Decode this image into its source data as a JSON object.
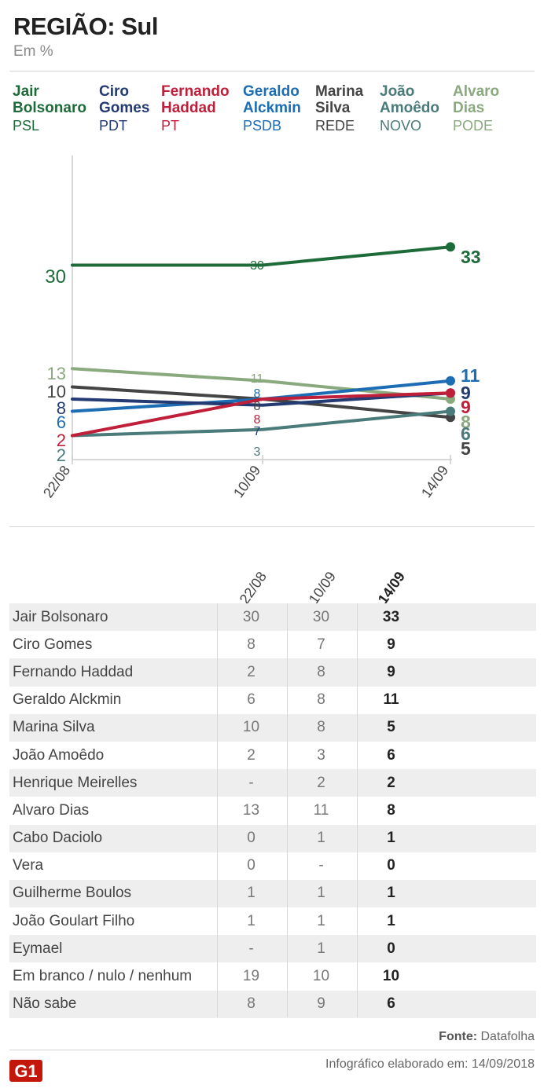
{
  "header": {
    "title": "REGIÃO: Sul",
    "subtitle": "Em %"
  },
  "legend": [
    {
      "name1": "Jair",
      "name2": "Bolsonaro",
      "party": "PSL",
      "color": "#1e6b3a"
    },
    {
      "name1": "Ciro",
      "name2": "Gomes",
      "party": "PDT",
      "color": "#233a73"
    },
    {
      "name1": "Fernando",
      "name2": "Haddad",
      "party": "PT",
      "color": "#c01f3a"
    },
    {
      "name1": "Geraldo",
      "name2": "Alckmin",
      "party": "PSDB",
      "color": "#1d6db5"
    },
    {
      "name1": "Marina",
      "name2": "Silva",
      "party": "REDE",
      "color": "#444444"
    },
    {
      "name1": "João",
      "name2": "Amoêdo",
      "party": "NOVO",
      "color": "#4a7a7a"
    },
    {
      "name1": "Alvaro",
      "name2": "Dias",
      "party": "PODE",
      "color": "#8aa97f"
    }
  ],
  "chart_data": {
    "type": "line",
    "x": [
      "22/08",
      "10/09",
      "14/09"
    ],
    "series": [
      {
        "name": "Jair Bolsonaro",
        "values": [
          30,
          30,
          33
        ],
        "color": "#1e6b3a"
      },
      {
        "name": "Ciro Gomes",
        "values": [
          8,
          7,
          9
        ],
        "color": "#233a73"
      },
      {
        "name": "Fernando Haddad",
        "values": [
          2,
          8,
          9
        ],
        "color": "#c01f3a"
      },
      {
        "name": "Geraldo Alckmin",
        "values": [
          6,
          8,
          11
        ],
        "color": "#1d6db5"
      },
      {
        "name": "Marina Silva",
        "values": [
          10,
          8,
          5
        ],
        "color": "#444444"
      },
      {
        "name": "João Amoêdo",
        "values": [
          2,
          3,
          6
        ],
        "color": "#4a7a7a"
      },
      {
        "name": "Alvaro Dias",
        "values": [
          13,
          11,
          8
        ],
        "color": "#8aa97f"
      }
    ]
  },
  "table": {
    "columns": [
      "22/08",
      "10/09",
      "14/09"
    ],
    "rows": [
      {
        "name": "Jair Bolsonaro",
        "v1": "30",
        "v2": "30",
        "v3": "33"
      },
      {
        "name": "Ciro Gomes",
        "v1": "8",
        "v2": "7",
        "v3": "9"
      },
      {
        "name": "Fernando Haddad",
        "v1": "2",
        "v2": "8",
        "v3": "9"
      },
      {
        "name": "Geraldo Alckmin",
        "v1": "6",
        "v2": "8",
        "v3": "11"
      },
      {
        "name": "Marina Silva",
        "v1": "10",
        "v2": "8",
        "v3": "5"
      },
      {
        "name": "João Amoêdo",
        "v1": "2",
        "v2": "3",
        "v3": "6"
      },
      {
        "name": "Henrique Meirelles",
        "v1": "-",
        "v2": "2",
        "v3": "2"
      },
      {
        "name": "Alvaro Dias",
        "v1": "13",
        "v2": "11",
        "v3": "8"
      },
      {
        "name": "Cabo Daciolo",
        "v1": "0",
        "v2": "1",
        "v3": "1"
      },
      {
        "name": "Vera",
        "v1": "0",
        "v2": "-",
        "v3": "0"
      },
      {
        "name": "Guilherme Boulos",
        "v1": "1",
        "v2": "1",
        "v3": "1"
      },
      {
        "name": "João Goulart Filho",
        "v1": "1",
        "v2": "1",
        "v3": "1"
      },
      {
        "name": "Eymael",
        "v1": "-",
        "v2": "1",
        "v3": "0"
      },
      {
        "name": "Em branco / nulo / nenhum",
        "v1": "19",
        "v2": "10",
        "v3": "10"
      },
      {
        "name": "Não sabe",
        "v1": "8",
        "v2": "9",
        "v3": "6"
      }
    ]
  },
  "footer": {
    "source_label": "Fonte:",
    "source_value": "Datafolha",
    "credit": "Infográfico elaborado em: 14/09/2018",
    "logo_text": "G1"
  }
}
